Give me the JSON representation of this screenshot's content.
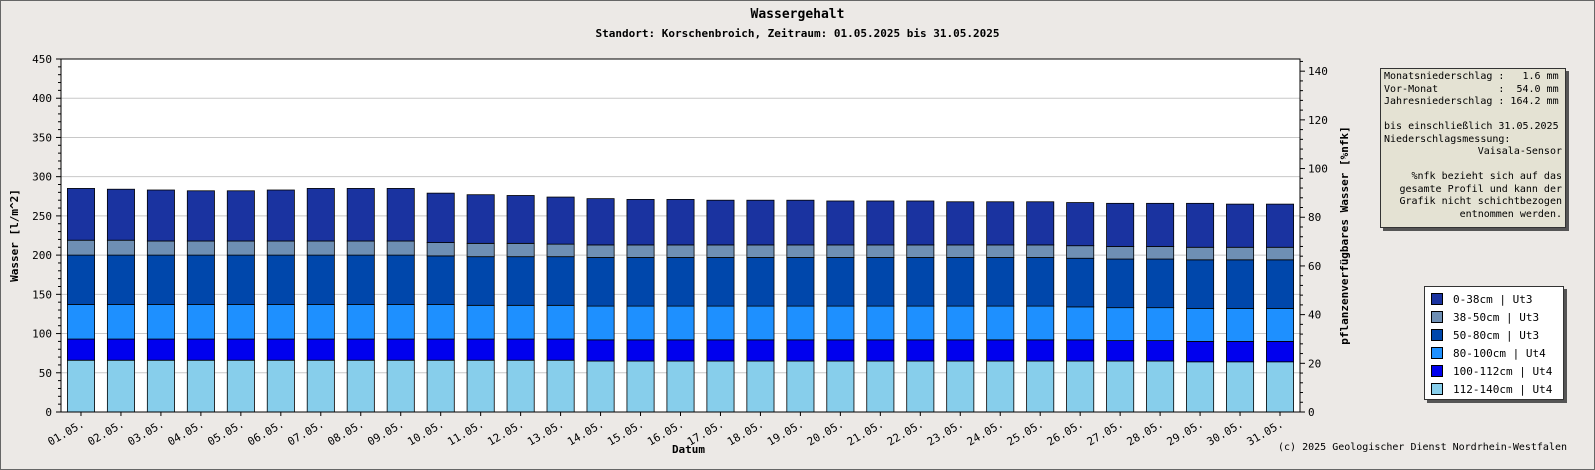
{
  "title": "Wassergehalt",
  "subtitle": "Standort: Korschenbroich, Zeitraum: 01.05.2025 bis 31.05.2025",
  "copyright": "(c) 2025 Geologischer Dienst Nordrhein-Westfalen",
  "info": {
    "lines": [
      "Monatsniederschlag :   1.6 mm",
      "Vor-Monat          :  54.0 mm",
      "Jahresniederschlag : 164.2 mm",
      "",
      "bis einschließlich 31.05.2025",
      "Niederschlagsmessung:"
    ],
    "sensor": "Vaisala-Sensor",
    "note": [
      "%nfk bezieht sich auf das",
      "gesamte Profil und kann der",
      "Grafik nicht schichtbezogen",
      "entnommen werden."
    ]
  },
  "chart_data": {
    "type": "bar",
    "stacked": true,
    "xlabel": "Datum",
    "ylabel": "Wasser [l/m^2]",
    "y2label": "pflanzenverfügbares Wasser [%nfk]",
    "ylim": [
      0,
      450
    ],
    "y2lim": [
      0,
      145
    ],
    "yticks": [
      0,
      50,
      100,
      150,
      200,
      250,
      300,
      350,
      400,
      450
    ],
    "y2ticks": [
      0,
      20,
      40,
      60,
      80,
      100,
      120,
      140
    ],
    "grid": true,
    "legend_position": "right",
    "categories": [
      "01.05.",
      "02.05.",
      "03.05.",
      "04.05.",
      "05.05.",
      "06.05.",
      "07.05.",
      "08.05.",
      "09.05.",
      "10.05.",
      "11.05.",
      "12.05.",
      "13.05.",
      "14.05.",
      "15.05.",
      "16.05.",
      "17.05.",
      "18.05.",
      "19.05.",
      "20.05.",
      "21.05.",
      "22.05.",
      "23.05.",
      "24.05.",
      "25.05.",
      "26.05.",
      "27.05.",
      "28.05.",
      "29.05.",
      "30.05.",
      "31.05."
    ],
    "series": [
      {
        "name": "112-140cm | Ut4",
        "color": "#87ceeb",
        "values": [
          66,
          66,
          66,
          66,
          66,
          66,
          66,
          66,
          66,
          66,
          66,
          66,
          66,
          65,
          65,
          65,
          65,
          65,
          65,
          65,
          65,
          65,
          65,
          65,
          65,
          65,
          65,
          65,
          64,
          64,
          64
        ]
      },
      {
        "name": "100-112cm | Ut4",
        "color": "#0000ee",
        "values": [
          27,
          27,
          27,
          27,
          27,
          27,
          27,
          27,
          27,
          27,
          27,
          27,
          27,
          27,
          27,
          27,
          27,
          27,
          27,
          27,
          27,
          27,
          27,
          27,
          27,
          27,
          26,
          26,
          26,
          26,
          26
        ]
      },
      {
        "name": "80-100cm | Ut4",
        "color": "#1e90ff",
        "values": [
          44,
          44,
          44,
          44,
          44,
          44,
          44,
          44,
          44,
          44,
          43,
          43,
          43,
          43,
          43,
          43,
          43,
          43,
          43,
          43,
          43,
          43,
          43,
          43,
          43,
          42,
          42,
          42,
          42,
          42,
          42
        ]
      },
      {
        "name": "50-80cm | Ut3",
        "color": "#0047ab",
        "values": [
          63,
          63,
          63,
          63,
          63,
          63,
          63,
          63,
          63,
          62,
          62,
          62,
          62,
          62,
          62,
          62,
          62,
          62,
          62,
          62,
          62,
          62,
          62,
          62,
          62,
          62,
          62,
          62,
          62,
          62,
          62
        ]
      },
      {
        "name": "38-50cm | Ut3",
        "color": "#6e8fb4",
        "values": [
          19,
          19,
          18,
          18,
          18,
          18,
          18,
          18,
          18,
          17,
          17,
          17,
          16,
          16,
          16,
          16,
          16,
          16,
          16,
          16,
          16,
          16,
          16,
          16,
          16,
          16,
          16,
          16,
          16,
          16,
          16
        ]
      },
      {
        "name": "0-38cm | Ut3",
        "color": "#1a33a0",
        "values": [
          66,
          65,
          65,
          64,
          64,
          65,
          67,
          67,
          67,
          63,
          62,
          61,
          60,
          59,
          58,
          58,
          57,
          57,
          57,
          56,
          56,
          56,
          55,
          55,
          55,
          55,
          55,
          55,
          56,
          55,
          55
        ]
      }
    ]
  },
  "legend_order": [
    5,
    4,
    3,
    2,
    1,
    0
  ]
}
